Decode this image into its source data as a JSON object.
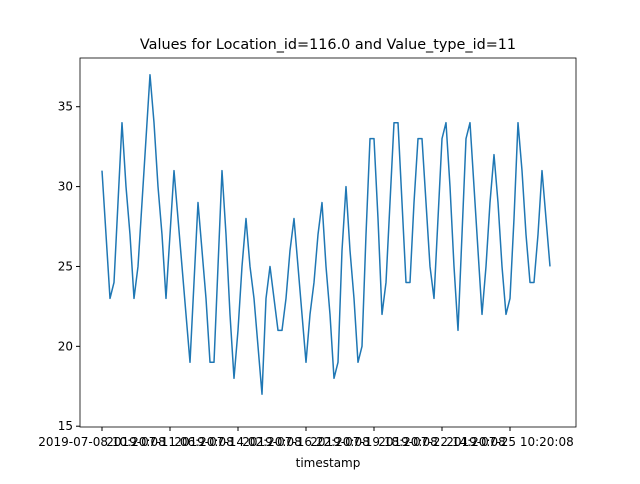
{
  "chart_data": {
    "type": "line",
    "title": "Values for Location_id=116.0 and Value_type_id=11",
    "x_label": "timestamp",
    "x": [
      "2019-07-08 10:20:08",
      "2019-07-08 14:20:08",
      "2019-07-08 18:20:08",
      "2019-07-08 22:20:08",
      "2019-07-09 02:20:08",
      "2019-07-09 06:20:08",
      "2019-07-09 10:20:08",
      "2019-07-09 14:20:08",
      "2019-07-09 18:20:08",
      "2019-07-09 22:20:08",
      "2019-07-10 02:20:08",
      "2019-07-10 06:20:08",
      "2019-07-10 10:20:08",
      "2019-07-10 14:20:08",
      "2019-07-10 18:20:08",
      "2019-07-10 22:20:08",
      "2019-07-11 02:20:08",
      "2019-07-11 06:20:08",
      "2019-07-11 10:20:08",
      "2019-07-11 14:20:08",
      "2019-07-11 18:20:08",
      "2019-07-11 22:20:08",
      "2019-07-12 02:20:08",
      "2019-07-12 06:20:08",
      "2019-07-12 10:20:08",
      "2019-07-12 14:20:08",
      "2019-07-12 18:20:08",
      "2019-07-12 22:20:08",
      "2019-07-13 02:20:08",
      "2019-07-13 06:20:08",
      "2019-07-13 10:20:08",
      "2019-07-13 14:20:08",
      "2019-07-13 18:20:08",
      "2019-07-13 22:20:08",
      "2019-07-14 02:20:08",
      "2019-07-14 06:20:08",
      "2019-07-14 10:20:08",
      "2019-07-14 14:20:08",
      "2019-07-14 18:20:08",
      "2019-07-14 22:20:08",
      "2019-07-15 02:20:08",
      "2019-07-15 06:20:08",
      "2019-07-15 10:20:08",
      "2019-07-15 14:20:08",
      "2019-07-15 18:20:08",
      "2019-07-15 22:20:08",
      "2019-07-16 02:20:08",
      "2019-07-16 06:20:08",
      "2019-07-16 10:20:08",
      "2019-07-16 14:20:08",
      "2019-07-16 18:20:08",
      "2019-07-16 22:20:08",
      "2019-07-17 02:20:08",
      "2019-07-17 06:20:08",
      "2019-07-17 10:20:08",
      "2019-07-17 14:20:08",
      "2019-07-17 18:20:08",
      "2019-07-17 22:20:08",
      "2019-07-18 02:20:08",
      "2019-07-18 06:20:08",
      "2019-07-18 10:20:08",
      "2019-07-18 14:20:08",
      "2019-07-18 18:20:08",
      "2019-07-18 22:20:08",
      "2019-07-19 02:20:08",
      "2019-07-19 06:20:08",
      "2019-07-19 10:20:08",
      "2019-07-19 14:20:08",
      "2019-07-19 18:20:08",
      "2019-07-19 22:20:08",
      "2019-07-20 02:20:08",
      "2019-07-20 06:20:08",
      "2019-07-20 10:20:08",
      "2019-07-20 14:20:08",
      "2019-07-20 18:20:08",
      "2019-07-20 22:20:08",
      "2019-07-21 02:20:08",
      "2019-07-21 06:20:08",
      "2019-07-21 10:20:08",
      "2019-07-21 14:20:08",
      "2019-07-21 18:20:08",
      "2019-07-21 22:20:08",
      "2019-07-22 02:20:08",
      "2019-07-22 06:20:08",
      "2019-07-22 10:20:08",
      "2019-07-22 14:20:08",
      "2019-07-22 18:20:08",
      "2019-07-22 22:20:08",
      "2019-07-23 02:20:08",
      "2019-07-23 06:20:08",
      "2019-07-23 10:20:08",
      "2019-07-23 14:20:08",
      "2019-07-23 18:20:08",
      "2019-07-23 22:20:08",
      "2019-07-24 02:20:08",
      "2019-07-24 06:20:08",
      "2019-07-24 10:20:08",
      "2019-07-24 14:20:08",
      "2019-07-24 18:20:08",
      "2019-07-24 22:20:08",
      "2019-07-25 02:20:08",
      "2019-07-25 06:20:08",
      "2019-07-25 10:20:08",
      "2019-07-25 14:20:08",
      "2019-07-25 18:20:08",
      "2019-07-25 22:20:08",
      "2019-07-26 02:20:08",
      "2019-07-26 06:20:08",
      "2019-07-26 10:20:08",
      "2019-07-26 14:20:08",
      "2019-07-26 18:20:08",
      "2019-07-26 22:20:08",
      "2019-07-27 02:20:08"
    ],
    "values": [
      31,
      27,
      23,
      24,
      29,
      34,
      30,
      27,
      23,
      25,
      29,
      33,
      37,
      34,
      30,
      27,
      23,
      27,
      31,
      28,
      25,
      22,
      19,
      24,
      29,
      26,
      23,
      19,
      19,
      25,
      31,
      27,
      22,
      18,
      21,
      25,
      28,
      25,
      23,
      20,
      17,
      23,
      25,
      23,
      21,
      21,
      23,
      26,
      28,
      25,
      22,
      19,
      22,
      24,
      27,
      29,
      25,
      22,
      18,
      19,
      26,
      30,
      26,
      23,
      19,
      20,
      27,
      33,
      33,
      28,
      22,
      24,
      29,
      34,
      34,
      29,
      24,
      24,
      29,
      33,
      33,
      29,
      25,
      23,
      28,
      33,
      34,
      30,
      25,
      21,
      27,
      33,
      34,
      30,
      26,
      22,
      25,
      29,
      32,
      29,
      25,
      22,
      23,
      28,
      34,
      31,
      27,
      24,
      24,
      27,
      31,
      28,
      25
    ],
    "color": "#1f77b4",
    "xlim": [
      "2019-07-07 12:20:08",
      "2019-07-28 04:20:08"
    ],
    "xticks": [
      "2019-07-08 10:20:08",
      "2019-07-11 06:20:08",
      "2019-07-14 02:20:08",
      "2019-07-16 22:20:08",
      "2019-07-19 18:20:08",
      "2019-07-22 14:20:08",
      "2019-07-25 10:20:08"
    ],
    "ylim": [
      14.95,
      38.05
    ],
    "yticks": [
      15,
      20,
      25,
      30,
      35
    ],
    "grid": false
  }
}
